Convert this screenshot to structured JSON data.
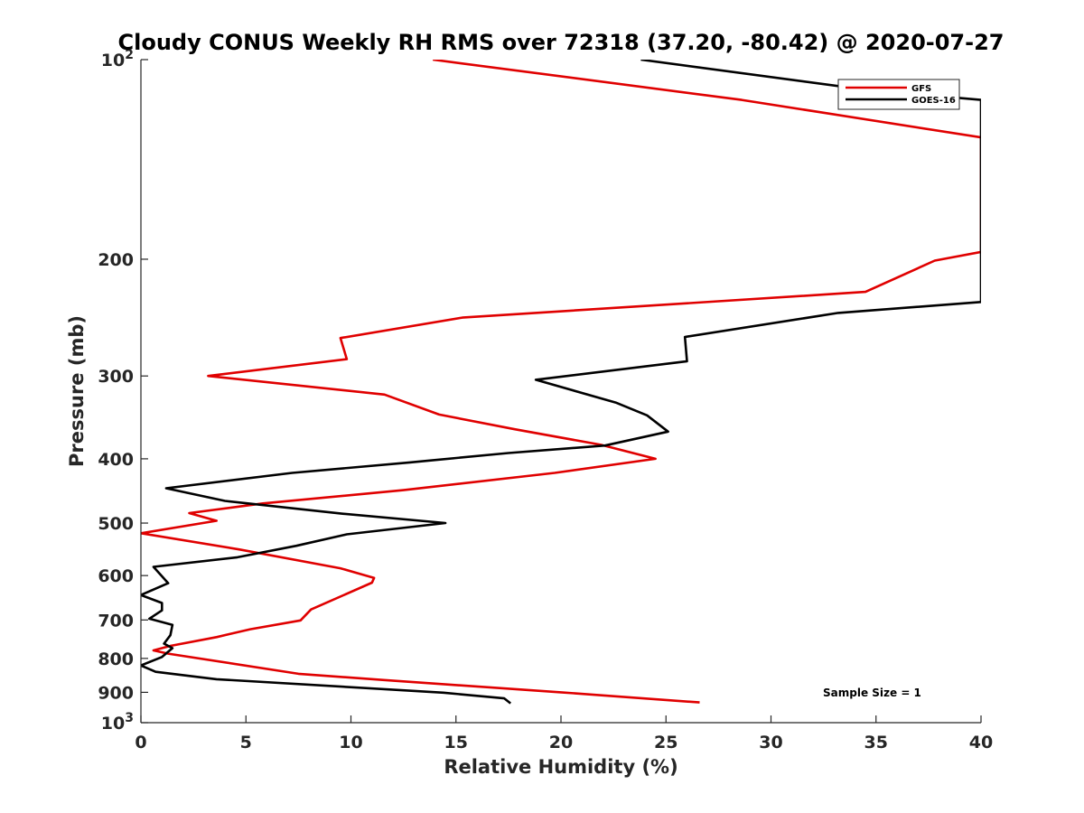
{
  "chart_data": {
    "type": "line",
    "title": "Cloudy CONUS Weekly RH RMS over 72318 (37.20, -80.42) @ 2020-07-27",
    "xlabel": "Relative Humidity (%)",
    "ylabel": "Pressure (mb)",
    "xlim": [
      0,
      40
    ],
    "ylim": [
      100,
      1000
    ],
    "yscale": "log",
    "y_reversed": true,
    "xticks": [
      0,
      5,
      10,
      15,
      20,
      25,
      30,
      35,
      40
    ],
    "yticks": [
      {
        "value": 100,
        "label": "10",
        "sup": "2"
      },
      {
        "value": 200,
        "label": "200",
        "sup": ""
      },
      {
        "value": 300,
        "label": "300",
        "sup": ""
      },
      {
        "value": 400,
        "label": "400",
        "sup": ""
      },
      {
        "value": 500,
        "label": "500",
        "sup": ""
      },
      {
        "value": 600,
        "label": "600",
        "sup": ""
      },
      {
        "value": 700,
        "label": "700",
        "sup": ""
      },
      {
        "value": 800,
        "label": "800",
        "sup": ""
      },
      {
        "value": 900,
        "label": "900",
        "sup": ""
      },
      {
        "value": 1000,
        "label": "10",
        "sup": "3"
      }
    ],
    "legend_position": "top-right",
    "annotation": "Sample Size = 1",
    "series": [
      {
        "name": "GFS",
        "color": "#e00000",
        "points": [
          [
            13.9,
            100
          ],
          [
            28.6,
            115
          ],
          [
            40,
            131
          ],
          [
            40,
            195
          ],
          [
            37.8,
            201
          ],
          [
            34.5,
            224
          ],
          [
            15.3,
            245
          ],
          [
            9.5,
            263
          ],
          [
            9.8,
            283
          ],
          [
            3.2,
            300
          ],
          [
            11.6,
            320
          ],
          [
            14.2,
            343
          ],
          [
            17.8,
            361
          ],
          [
            21.9,
            381
          ],
          [
            24.5,
            400
          ],
          [
            19.7,
            420
          ],
          [
            12.5,
            446
          ],
          [
            5.8,
            467
          ],
          [
            2.3,
            483
          ],
          [
            3.6,
            496
          ],
          [
            0,
            518
          ],
          [
            4.7,
            548
          ],
          [
            9.5,
            585
          ],
          [
            11.1,
            605
          ],
          [
            11.0,
            615
          ],
          [
            8.1,
            675
          ],
          [
            7.6,
            701
          ],
          [
            5.2,
            723
          ],
          [
            3.6,
            743
          ],
          [
            1.4,
            766
          ],
          [
            0.6,
            778
          ],
          [
            1.3,
            787
          ],
          [
            7.5,
            844
          ],
          [
            11.5,
            862
          ],
          [
            20.0,
            900
          ],
          [
            26.6,
            932
          ]
        ]
      },
      {
        "name": "GOES-16",
        "color": "#000000",
        "points": [
          [
            23.8,
            100
          ],
          [
            34.5,
            111
          ],
          [
            40,
            115
          ],
          [
            40,
            232
          ],
          [
            33.2,
            241
          ],
          [
            25.9,
            262
          ],
          [
            26.0,
            285
          ],
          [
            18.8,
            304
          ],
          [
            22.6,
            329
          ],
          [
            24.1,
            344
          ],
          [
            25.1,
            364
          ],
          [
            22.1,
            382
          ],
          [
            17.5,
            392
          ],
          [
            12.8,
            405
          ],
          [
            7.2,
            420
          ],
          [
            1.2,
            443
          ],
          [
            4.0,
            463
          ],
          [
            9.6,
            484
          ],
          [
            14.5,
            500
          ],
          [
            9.8,
            520
          ],
          [
            7.4,
            541
          ],
          [
            4.6,
            563
          ],
          [
            0.6,
            582
          ],
          [
            1.3,
            616
          ],
          [
            0,
            642
          ],
          [
            1.0,
            660
          ],
          [
            1.0,
            677
          ],
          [
            0.4,
            697
          ],
          [
            1.5,
            712
          ],
          [
            1.4,
            738
          ],
          [
            1.1,
            760
          ],
          [
            1.5,
            772
          ],
          [
            1.0,
            796
          ],
          [
            0,
            820
          ],
          [
            0.7,
            838
          ],
          [
            3.6,
            860
          ],
          [
            14.4,
            901
          ],
          [
            17.3,
            919
          ],
          [
            17.6,
            935
          ]
        ]
      }
    ]
  }
}
